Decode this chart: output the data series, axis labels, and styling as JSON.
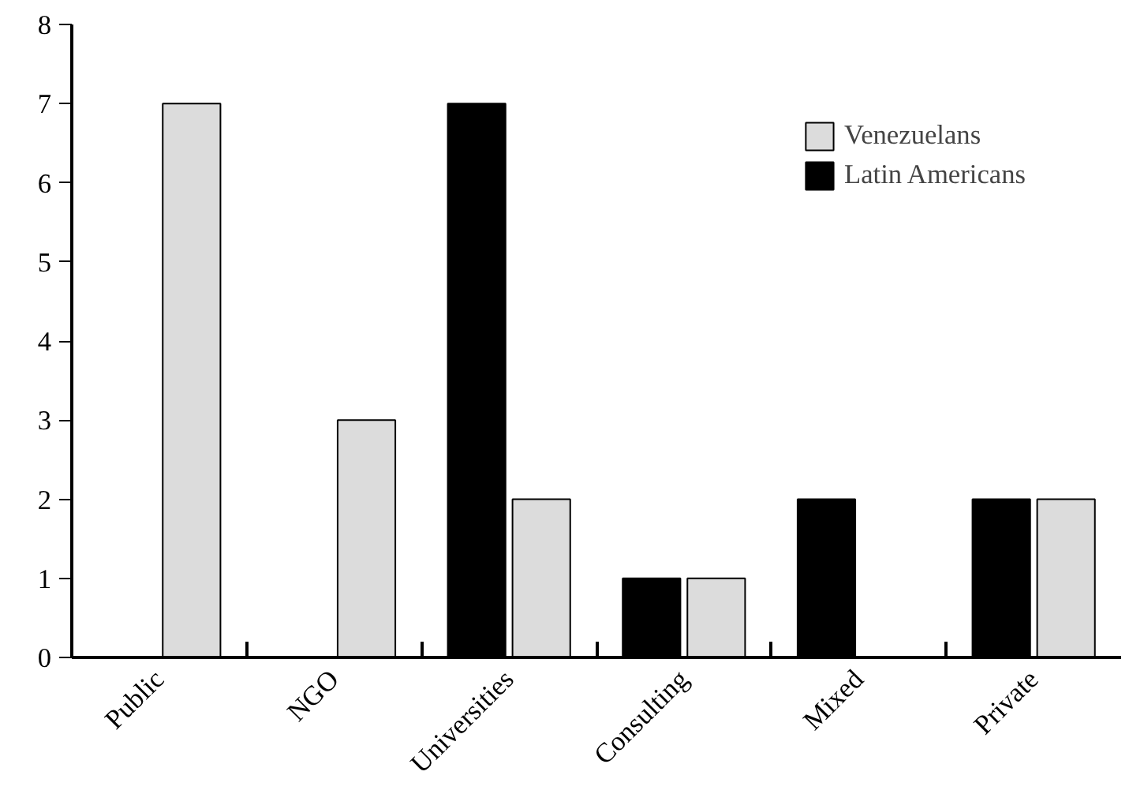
{
  "chart_data": {
    "type": "bar",
    "categories": [
      "Public",
      "NGO",
      "Universities",
      "Consulting",
      "Mixed",
      "Private"
    ],
    "series": [
      {
        "name": "Latin Americans",
        "color": "#000000",
        "values": [
          0,
          0,
          7,
          1,
          2,
          2
        ]
      },
      {
        "name": "Venezuelans",
        "color": "#dcdcdc",
        "values": [
          7,
          3,
          2,
          1,
          0,
          2
        ]
      }
    ],
    "ylim": [
      0,
      8
    ],
    "yticks": [
      0,
      1,
      2,
      3,
      4,
      5,
      6,
      7,
      8
    ],
    "grid": false,
    "legend": "top right"
  }
}
